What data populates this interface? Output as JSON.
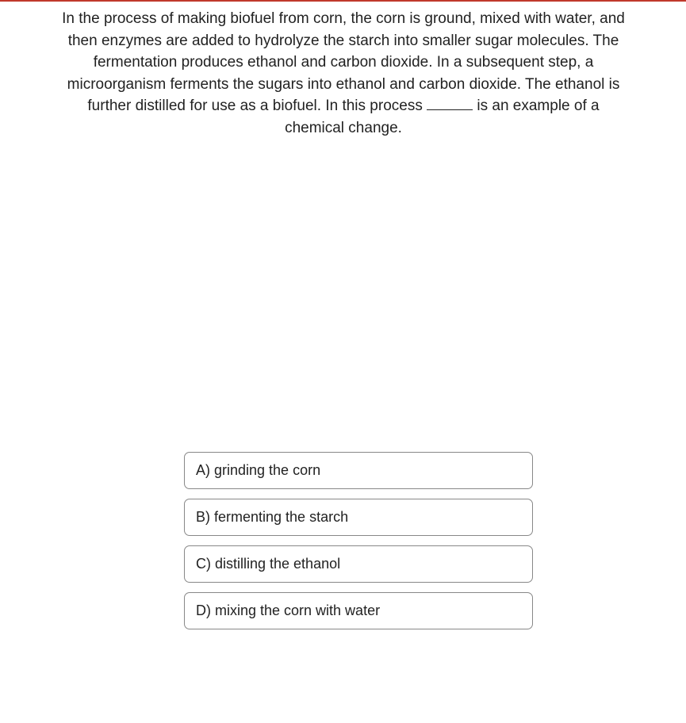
{
  "question": {
    "text_pre": "In the process of making biofuel from corn, the corn is ground, mixed with water, and then enzymes are added to hydrolyze the starch into smaller sugar molecules. The fermentation produces ethanol and carbon dioxide. In a subsequent step, a microorganism ferments the sugars into ethanol and carbon dioxide. The ethanol is further distilled for use as a biofuel. In this process ",
    "text_post": " is an example of a chemical change."
  },
  "options": [
    {
      "label": "A) grinding the corn"
    },
    {
      "label": "B) fermenting the starch"
    },
    {
      "label": "C) distilling the ethanol"
    },
    {
      "label": "D) mixing the corn with water"
    }
  ],
  "style": {
    "rule_color": "#c0392b",
    "option_border_color": "#888888",
    "option_border_radius": 7,
    "font_family": "Arial",
    "question_fontsize": 19,
    "option_fontsize": 18,
    "text_color": "#222222",
    "background_color": "#ffffff"
  }
}
